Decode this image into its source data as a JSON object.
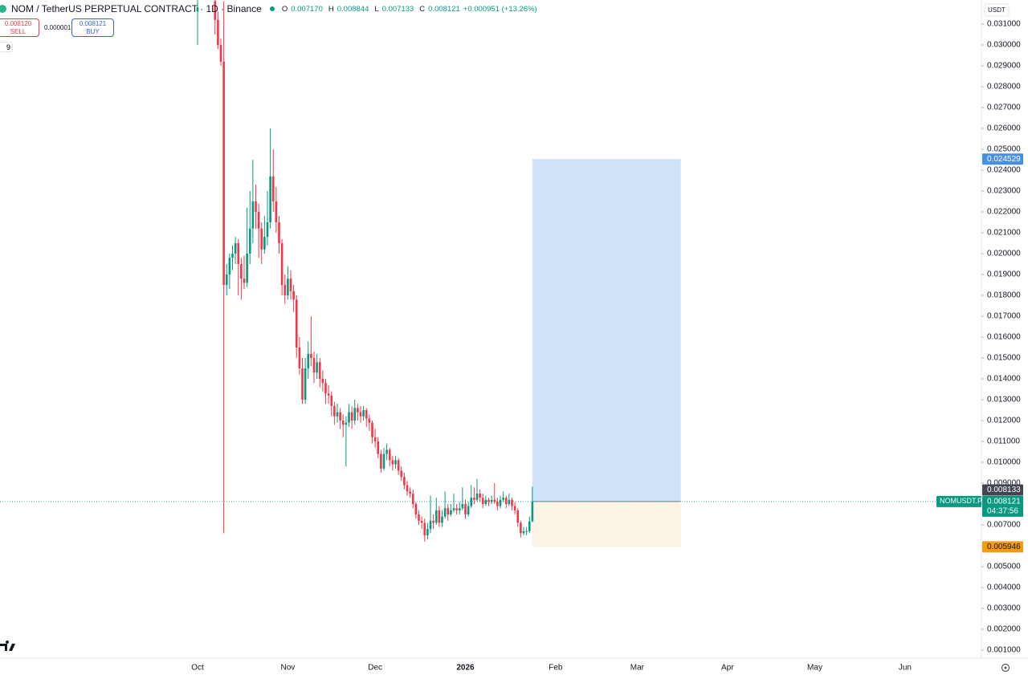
{
  "header": {
    "title": "NOM / TetherUS PERPETUAL CONTRACT · 1D · Binance",
    "ohlc": [
      {
        "label": "O",
        "value": "0.007170"
      },
      {
        "label": "H",
        "value": "0.008844"
      },
      {
        "label": "L",
        "value": "0.007133"
      },
      {
        "label": "C",
        "value": "0.008121"
      }
    ],
    "change": "+0.000951 (+13.26%)"
  },
  "trade": {
    "sell_price": "0.008120",
    "sell_label": "SELL",
    "spread": "0.000001",
    "buy_price": "0.008121",
    "buy_label": "BUY",
    "indicators": "9"
  },
  "currency": "USDT",
  "chart_data": {
    "type": "candlestick",
    "up_color": "#089981",
    "down_color": "#f23645",
    "x": [
      0,
      6,
      7,
      8,
      9,
      10,
      11,
      12,
      13,
      14,
      15,
      16,
      17,
      18,
      19,
      20,
      21,
      22,
      23,
      24,
      25,
      26,
      27,
      28,
      29,
      30,
      31,
      32,
      33,
      34,
      35,
      36,
      37,
      38,
      39,
      40,
      41,
      42,
      43,
      44,
      45,
      46,
      47,
      48,
      49,
      50,
      51,
      52,
      53,
      54,
      55,
      56,
      57,
      58,
      59,
      60,
      61,
      62,
      63,
      64,
      65,
      66,
      67,
      68,
      69,
      70,
      71,
      72,
      73,
      74,
      75,
      76,
      77,
      78,
      79,
      80,
      81,
      82,
      83,
      84,
      85,
      86,
      87,
      88,
      89,
      90,
      91,
      92,
      93,
      94,
      95,
      96,
      97,
      98,
      99,
      100,
      101,
      102,
      103,
      104,
      105,
      106,
      107,
      108,
      109,
      110,
      111,
      112,
      113,
      114,
      115
    ],
    "open": [
      0.0316,
      0.0321,
      0.0312,
      0.03,
      0.0292,
      0.0185,
      0.019,
      0.0198,
      0.02,
      0.0205,
      0.0195,
      0.0188,
      0.0186,
      0.02,
      0.0212,
      0.0225,
      0.022,
      0.0212,
      0.0202,
      0.0208,
      0.0215,
      0.0237,
      0.0225,
      0.0215,
      0.0205,
      0.0185,
      0.018,
      0.0188,
      0.0182,
      0.0178,
      0.0155,
      0.0145,
      0.013,
      0.0145,
      0.0152,
      0.015,
      0.0143,
      0.0148,
      0.014,
      0.0138,
      0.0133,
      0.0132,
      0.0127,
      0.0122,
      0.0124,
      0.012,
      0.0118,
      0.0119,
      0.0124,
      0.012,
      0.0126,
      0.0124,
      0.0122,
      0.0125,
      0.0121,
      0.0119,
      0.0112,
      0.011,
      0.0104,
      0.0097,
      0.0104,
      0.0106,
      0.0101,
      0.0099,
      0.0101,
      0.0096,
      0.0093,
      0.0089,
      0.0086,
      0.0085,
      0.008,
      0.0075,
      0.0072,
      0.0071,
      0.0065,
      0.0068,
      0.0072,
      0.0071,
      0.0077,
      0.0071,
      0.0074,
      0.0078,
      0.0075,
      0.0077,
      0.0078,
      0.0077,
      0.0078,
      0.008,
      0.0075,
      0.0079,
      0.0083,
      0.0082,
      0.0085,
      0.0083,
      0.008,
      0.0082,
      0.0081,
      0.0082,
      0.0081,
      0.0079,
      0.0082,
      0.0083,
      0.008,
      0.0082,
      0.0079,
      0.0077,
      0.0071,
      0.0066,
      0.0067,
      0.0067,
      0.00717
    ],
    "high": [
      0.0322,
      0.0322,
      0.0316,
      0.0303,
      0.0321,
      0.0195,
      0.02,
      0.0204,
      0.0208,
      0.0207,
      0.0198,
      0.0199,
      0.0222,
      0.023,
      0.0245,
      0.0233,
      0.0224,
      0.0215,
      0.0218,
      0.023,
      0.026,
      0.025,
      0.0232,
      0.0218,
      0.0207,
      0.019,
      0.0194,
      0.0192,
      0.0185,
      0.018,
      0.016,
      0.015,
      0.015,
      0.0158,
      0.017,
      0.0153,
      0.0152,
      0.015,
      0.0144,
      0.014,
      0.0137,
      0.0134,
      0.0129,
      0.0128,
      0.0126,
      0.0123,
      0.0122,
      0.0128,
      0.0127,
      0.013,
      0.0128,
      0.0127,
      0.0127,
      0.0126,
      0.0123,
      0.012,
      0.0116,
      0.0112,
      0.0106,
      0.0107,
      0.0109,
      0.0107,
      0.0103,
      0.0103,
      0.0102,
      0.0098,
      0.0095,
      0.0091,
      0.0088,
      0.0087,
      0.0081,
      0.0077,
      0.0074,
      0.0073,
      0.0071,
      0.0084,
      0.0075,
      0.0083,
      0.0079,
      0.0077,
      0.0086,
      0.008,
      0.008,
      0.0085,
      0.008,
      0.0081,
      0.0088,
      0.0082,
      0.0081,
      0.0089,
      0.0088,
      0.0092,
      0.0087,
      0.0085,
      0.0084,
      0.0083,
      0.0084,
      0.009,
      0.0083,
      0.0084,
      0.0086,
      0.0084,
      0.0085,
      0.0083,
      0.0081,
      0.0078,
      0.0072,
      0.0069,
      0.0069,
      0.0074,
      0.008844
    ],
    "low": [
      0.03,
      0.0305,
      0.0298,
      0.029,
      0.0066,
      0.018,
      0.0183,
      0.0192,
      0.0195,
      0.018,
      0.0178,
      0.0183,
      0.0184,
      0.0195,
      0.0205,
      0.0212,
      0.0198,
      0.0195,
      0.02,
      0.0204,
      0.0212,
      0.022,
      0.021,
      0.02,
      0.018,
      0.0176,
      0.0178,
      0.0178,
      0.0172,
      0.015,
      0.0142,
      0.0128,
      0.0128,
      0.014,
      0.0146,
      0.0138,
      0.014,
      0.0136,
      0.0134,
      0.0128,
      0.0128,
      0.0122,
      0.0118,
      0.0119,
      0.0116,
      0.0112,
      0.0098,
      0.0117,
      0.0116,
      0.0118,
      0.012,
      0.0119,
      0.012,
      0.0117,
      0.0115,
      0.0109,
      0.0107,
      0.0102,
      0.0095,
      0.0096,
      0.0101,
      0.0098,
      0.0096,
      0.0097,
      0.0094,
      0.0091,
      0.0087,
      0.0084,
      0.0083,
      0.0078,
      0.0073,
      0.007,
      0.0068,
      0.0062,
      0.0063,
      0.0066,
      0.0068,
      0.007,
      0.0069,
      0.0069,
      0.0073,
      0.0072,
      0.0074,
      0.0076,
      0.0075,
      0.0075,
      0.0077,
      0.0073,
      0.0074,
      0.0078,
      0.008,
      0.0081,
      0.0081,
      0.0078,
      0.0079,
      0.0079,
      0.008,
      0.008,
      0.0077,
      0.0078,
      0.0081,
      0.0078,
      0.0079,
      0.0077,
      0.0075,
      0.0069,
      0.0064,
      0.0065,
      0.0065,
      0.0066,
      0.007133
    ],
    "close": [
      0.0318,
      0.0312,
      0.03,
      0.0292,
      0.0185,
      0.019,
      0.0198,
      0.02,
      0.0205,
      0.0195,
      0.0188,
      0.0186,
      0.02,
      0.0212,
      0.0225,
      0.022,
      0.0212,
      0.0202,
      0.0208,
      0.0215,
      0.0237,
      0.0225,
      0.0215,
      0.0205,
      0.0185,
      0.018,
      0.0188,
      0.0182,
      0.0178,
      0.0155,
      0.0145,
      0.013,
      0.0145,
      0.0152,
      0.015,
      0.0143,
      0.0148,
      0.014,
      0.0138,
      0.0133,
      0.0132,
      0.0127,
      0.0122,
      0.0124,
      0.012,
      0.0118,
      0.0119,
      0.0124,
      0.012,
      0.0126,
      0.0124,
      0.0122,
      0.0125,
      0.0121,
      0.0119,
      0.0112,
      0.011,
      0.0104,
      0.0097,
      0.0104,
      0.0106,
      0.0101,
      0.0099,
      0.0101,
      0.0096,
      0.0093,
      0.0089,
      0.0086,
      0.0085,
      0.008,
      0.0075,
      0.0072,
      0.0071,
      0.0065,
      0.0068,
      0.0072,
      0.0071,
      0.0077,
      0.0071,
      0.0074,
      0.0078,
      0.0075,
      0.0077,
      0.0078,
      0.0077,
      0.0078,
      0.008,
      0.0075,
      0.0079,
      0.0083,
      0.0082,
      0.0085,
      0.0083,
      0.008,
      0.0082,
      0.0081,
      0.0082,
      0.0081,
      0.0079,
      0.0082,
      0.0083,
      0.008,
      0.0082,
      0.0079,
      0.0077,
      0.0071,
      0.0066,
      0.0067,
      0.0067,
      0.00717,
      0.008121
    ],
    "xlim": [
      -67.86,
      269.24
    ],
    "xticks": [
      {
        "value": 0,
        "label": "Oct"
      },
      {
        "value": 31,
        "label": "Nov"
      },
      {
        "value": 61,
        "label": "Dec"
      },
      {
        "value": 92,
        "label": "2026"
      },
      {
        "value": 123,
        "label": "Feb"
      },
      {
        "value": 151,
        "label": "Mar"
      },
      {
        "value": 182,
        "label": "Apr"
      },
      {
        "value": 212,
        "label": "May"
      },
      {
        "value": 243,
        "label": "Jun"
      }
    ],
    "ylim": [
      0.000615,
      0.032154
    ],
    "yticks": [
      {
        "value": 0.001,
        "label": "0.001000"
      },
      {
        "value": 0.002,
        "label": "0.002000"
      },
      {
        "value": 0.003,
        "label": "0.003000"
      },
      {
        "value": 0.004,
        "label": "0.004000"
      },
      {
        "value": 0.005,
        "label": "0.005000"
      },
      {
        "value": 0.006,
        "label": "0.006000"
      },
      {
        "value": 0.007,
        "label": "0.007000"
      },
      {
        "value": 0.008,
        "label": "0.008000"
      },
      {
        "value": 0.009,
        "label": "0.009000"
      },
      {
        "value": 0.01,
        "label": "0.010000"
      },
      {
        "value": 0.011,
        "label": "0.011000"
      },
      {
        "value": 0.012,
        "label": "0.012000"
      },
      {
        "value": 0.013,
        "label": "0.013000"
      },
      {
        "value": 0.014,
        "label": "0.014000"
      },
      {
        "value": 0.015,
        "label": "0.015000"
      },
      {
        "value": 0.016,
        "label": "0.016000"
      },
      {
        "value": 0.017,
        "label": "0.017000"
      },
      {
        "value": 0.018,
        "label": "0.018000"
      },
      {
        "value": 0.019,
        "label": "0.019000"
      },
      {
        "value": 0.02,
        "label": "0.020000"
      },
      {
        "value": 0.021,
        "label": "0.021000"
      },
      {
        "value": 0.022,
        "label": "0.022000"
      },
      {
        "value": 0.023,
        "label": "0.023000"
      },
      {
        "value": 0.024,
        "label": "0.024000"
      },
      {
        "value": 0.025,
        "label": "0.025000"
      },
      {
        "value": 0.026,
        "label": "0.026000"
      },
      {
        "value": 0.027,
        "label": "0.027000"
      },
      {
        "value": 0.028,
        "label": "0.028000"
      },
      {
        "value": 0.029,
        "label": "0.029000"
      },
      {
        "value": 0.03,
        "label": "0.030000"
      },
      {
        "value": 0.031,
        "label": "0.031000"
      }
    ],
    "grid": false,
    "position": {
      "start_x": 115,
      "end_x": 166,
      "entry": 0.008121,
      "target": 0.024529,
      "target_label": "0.024529",
      "stop": 0.005946,
      "stop_label": "0.005946",
      "target_color": "#cfe2f7",
      "stop_color": "#fbf3e3"
    },
    "last_price": 0.008121,
    "last_price_label": "0.008121",
    "symbol": "NOMUSDT.P",
    "countdown": "04:37:56",
    "mark_price": 0.008133,
    "mark_price_label": "0.008133"
  }
}
